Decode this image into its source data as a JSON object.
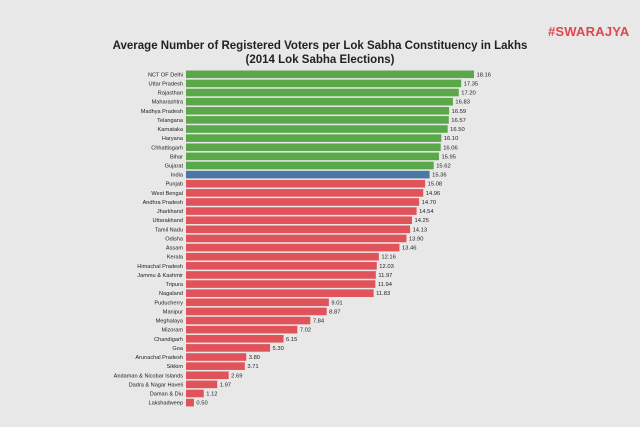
{
  "logo": "#SWARAJYA",
  "chart_data": {
    "type": "bar",
    "orientation": "horizontal",
    "title": "Average Number of Registered Voters per Lok Sabha Constituency in Lakhs",
    "subtitle": "(2014 Lok Sabha Elections)",
    "colors": {
      "above": "#5ba84b",
      "india": "#4a79a6",
      "below": "#e0535a"
    },
    "categories": [
      "NCT OF Delhi",
      "Uttar Pradesh",
      "Rajasthan",
      "Maharashtra",
      "Madhya Pradesh",
      "Telangana",
      "Karnataka",
      "Haryana",
      "Chhattisgarh",
      "Bihar",
      "Gujarat",
      "India",
      "Punjab",
      "West Bengal",
      "Andhra Pradesh",
      "Jharkhand",
      "Uttarakhand",
      "Tamil Nadu",
      "Odisha",
      "Assam",
      "Kerala",
      "Himachal Pradesh",
      "Jammu & Kashmir",
      "Tripura",
      "Nagaland",
      "Puducherry",
      "Manipur",
      "Meghalaya",
      "Mizoram",
      "Chandigarh",
      "Goa",
      "Arunachal Pradesh",
      "Sikkim",
      "Andaman & Nicobar Islands",
      "Dadra & Nagar Haveli",
      "Daman & Diu",
      "Lakshadweep"
    ],
    "values": [
      18.16,
      17.35,
      17.2,
      16.83,
      16.59,
      16.57,
      16.5,
      16.1,
      16.06,
      15.95,
      15.62,
      15.36,
      15.08,
      14.96,
      14.7,
      14.54,
      14.25,
      14.13,
      13.9,
      13.46,
      12.16,
      12.03,
      11.97,
      11.94,
      11.83,
      9.01,
      8.87,
      7.84,
      7.02,
      6.15,
      5.3,
      3.8,
      3.71,
      2.69,
      1.97,
      1.12,
      0.5
    ],
    "value_labels": [
      "18.16",
      "17.35",
      "17.20",
      "16.83",
      "16.59",
      "16.57",
      "16.50",
      "16.10",
      "16.06",
      "15.95",
      "15.62",
      "15.36",
      "15.08",
      "14.96",
      "14.70",
      "14.54",
      "14.25",
      "14.13",
      "13.90",
      "13.46",
      "12.16",
      "12.03",
      "11.97",
      "11.94",
      "11.83",
      "9.01",
      "8.87",
      "7.84",
      "7.02",
      "6.15",
      "5.30",
      "3.80",
      "3.71",
      "2.69",
      "1.97",
      "1.12",
      "0.50"
    ],
    "xlim": [
      0,
      18.16
    ],
    "grid": false,
    "legend": "none"
  }
}
